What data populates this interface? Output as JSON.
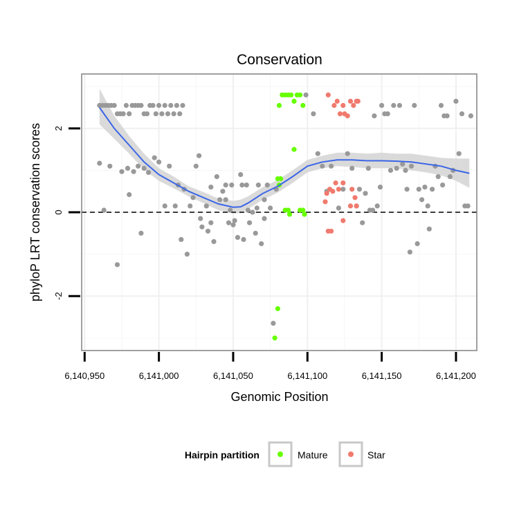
{
  "chart_data": {
    "type": "scatter",
    "title": "Conservation",
    "xlabel": "Genomic Position",
    "ylabel": "phyloP LRT conservation scores",
    "xlim": [
      6140948,
      6141214
    ],
    "ylim": [
      -3.3,
      3.3
    ],
    "x_ticks": [
      6140950,
      6141000,
      6141050,
      6141100,
      6141150,
      6141200
    ],
    "x_tick_labels": [
      "6,140,950",
      "6,141,000",
      "6,141,050",
      "6,141,100",
      "6,141,150",
      "6,141,200"
    ],
    "y_ticks": [
      -2,
      0,
      2
    ],
    "y_tick_labels": [
      "-2",
      "0",
      "2"
    ],
    "reference_line": {
      "y": 0,
      "style": "dashed"
    },
    "legend": {
      "title": "Hairpin partition",
      "placement": "bottom",
      "entries": [
        {
          "label": "Mature",
          "color": "#66ff00"
        },
        {
          "label": "Star",
          "color": "#f07a6e"
        }
      ]
    },
    "colors": {
      "other": "#999999",
      "mature": "#66ff00",
      "star": "#f07a6e",
      "smooth": "#3b66e6",
      "band": "#d4d4d4"
    },
    "series": [
      {
        "name": "Other",
        "points": [
          [
            6140960,
            2.55
          ],
          [
            6140962,
            2.55
          ],
          [
            6140964,
            2.55
          ],
          [
            6140966,
            2.55
          ],
          [
            6140968,
            2.55
          ],
          [
            6140970,
            2.55
          ],
          [
            6140972,
            2.35
          ],
          [
            6140974,
            2.35
          ],
          [
            6140976,
            2.35
          ],
          [
            6140978,
            2.55
          ],
          [
            6140980,
            2.35
          ],
          [
            6140982,
            2.55
          ],
          [
            6140984,
            2.55
          ],
          [
            6140986,
            2.55
          ],
          [
            6140988,
            2.55
          ],
          [
            6140990,
            2.35
          ],
          [
            6140992,
            2.35
          ],
          [
            6140994,
            2.55
          ],
          [
            6140996,
            2.55
          ],
          [
            6140998,
            2.35
          ],
          [
            6141000,
            2.55
          ],
          [
            6141002,
            2.35
          ],
          [
            6141004,
            2.55
          ],
          [
            6141006,
            2.35
          ],
          [
            6141008,
            2.55
          ],
          [
            6141010,
            2.35
          ],
          [
            6141012,
            2.55
          ],
          [
            6141014,
            2.35
          ],
          [
            6141016,
            2.55
          ],
          [
            6140960,
            1.17
          ],
          [
            6140963,
            0.05
          ],
          [
            6140967,
            1.1
          ],
          [
            6140972,
            -1.25
          ],
          [
            6140975,
            0.97
          ],
          [
            6140979,
            1.05
          ],
          [
            6140980,
            0.42
          ],
          [
            6140983,
            0.97
          ],
          [
            6140986,
            1.1
          ],
          [
            6140988,
            -0.5
          ],
          [
            6140990,
            1.05
          ],
          [
            6140993,
            0.95
          ],
          [
            6140997,
            1.3
          ],
          [
            6141000,
            1.2
          ],
          [
            6141004,
            0.15
          ],
          [
            6141007,
            1.1
          ],
          [
            6141011,
            0.15
          ],
          [
            6141013,
            0.65
          ],
          [
            6141015,
            -0.65
          ],
          [
            6141017,
            0.55
          ],
          [
            6141019,
            -1.0
          ],
          [
            6141021,
            0.15
          ],
          [
            6141023,
            0.35
          ],
          [
            6141025,
            1.1
          ],
          [
            6141027,
            1.35
          ],
          [
            6141028,
            -0.15
          ],
          [
            6141029,
            -0.35
          ],
          [
            6141032,
            0.15
          ],
          [
            6141033,
            -0.45
          ],
          [
            6141035,
            -0.25
          ],
          [
            6141037,
            -0.7
          ],
          [
            6141039,
            0.85
          ],
          [
            6141041,
            0.3
          ],
          [
            6141043,
            0.5
          ],
          [
            6141045,
            0.65
          ],
          [
            6141047,
            -0.25
          ],
          [
            6141049,
            0.65
          ],
          [
            6141051,
            -0.2
          ],
          [
            6141053,
            -0.6
          ],
          [
            6141055,
            0.9
          ],
          [
            6141057,
            -0.65
          ],
          [
            6141059,
            0.65
          ],
          [
            6141061,
            -0.25
          ],
          [
            6141063,
            0.0
          ],
          [
            6141065,
            -0.5
          ],
          [
            6141067,
            0.65
          ],
          [
            6141069,
            -0.75
          ],
          [
            6141071,
            0.3
          ],
          [
            6141073,
            0.65
          ],
          [
            6141075,
            0.1
          ],
          [
            6141077,
            -2.65
          ],
          [
            6141079,
            0.55
          ],
          [
            6141035,
            0.6
          ],
          [
            6141045,
            0.3
          ],
          [
            6141048,
            0.05
          ],
          [
            6141050,
            -0.3
          ],
          [
            6141056,
            0.65
          ],
          [
            6141060,
            0.05
          ],
          [
            6141066,
            0.1
          ],
          [
            6141071,
            -0.15
          ],
          [
            6141099,
            2.8
          ],
          [
            6141104,
            2.35
          ],
          [
            6141107,
            1.4
          ],
          [
            6141110,
            1.1
          ],
          [
            6141113,
            0.5
          ],
          [
            6141116,
            1.1
          ],
          [
            6141121,
            0.1
          ],
          [
            6141124,
            0.55
          ],
          [
            6141127,
            1.4
          ],
          [
            6141130,
            1.05
          ],
          [
            6141133,
            0.15
          ],
          [
            6141135,
            0.55
          ],
          [
            6141137,
            -0.25
          ],
          [
            6141139,
            0.45
          ],
          [
            6141141,
            1.05
          ],
          [
            6141142,
            0.05
          ],
          [
            6141144,
            0.05
          ],
          [
            6141145,
            2.3
          ],
          [
            6141147,
            0.15
          ],
          [
            6141149,
            0.6
          ],
          [
            6141150,
            2.55
          ],
          [
            6141152,
            2.35
          ],
          [
            6141154,
            2.35
          ],
          [
            6141156,
            1.0
          ],
          [
            6141158,
            2.55
          ],
          [
            6141160,
            1.05
          ],
          [
            6141162,
            2.55
          ],
          [
            6141164,
            1.15
          ],
          [
            6141166,
            1.0
          ],
          [
            6141167,
            0.55
          ],
          [
            6141169,
            -0.95
          ],
          [
            6141170,
            1.1
          ],
          [
            6141172,
            2.55
          ],
          [
            6141174,
            -0.75
          ],
          [
            6141175,
            0.55
          ],
          [
            6141177,
            0.3
          ],
          [
            6141179,
            0.6
          ],
          [
            6141181,
            0.15
          ],
          [
            6141182,
            -0.4
          ],
          [
            6141184,
            0.55
          ],
          [
            6141186,
            1.1
          ],
          [
            6141188,
            0.85
          ],
          [
            6141190,
            2.55
          ],
          [
            6141191,
            0.65
          ],
          [
            6141192,
            2.3
          ],
          [
            6141194,
            2.3
          ],
          [
            6141196,
            0.85
          ],
          [
            6141198,
            1.0
          ],
          [
            6141200,
            2.65
          ],
          [
            6141202,
            1.4
          ],
          [
            6141204,
            2.35
          ],
          [
            6141206,
            0.15
          ],
          [
            6141208,
            0.15
          ],
          [
            6141210,
            2.3
          ]
        ]
      },
      {
        "name": "Mature",
        "points": [
          [
            6141081,
            2.55
          ],
          [
            6141083,
            2.8
          ],
          [
            6141085,
            2.8
          ],
          [
            6141087,
            2.8
          ],
          [
            6141089,
            2.8
          ],
          [
            6141091,
            2.65
          ],
          [
            6141093,
            2.8
          ],
          [
            6141095,
            2.8
          ],
          [
            6141097,
            2.55
          ],
          [
            6141091,
            1.5
          ],
          [
            6141080,
            0.8
          ],
          [
            6141082,
            0.8
          ],
          [
            6141081,
            0.65
          ],
          [
            6141085,
            0.05
          ],
          [
            6141087,
            0.05
          ],
          [
            6141088,
            -0.05
          ],
          [
            6141095,
            0.05
          ],
          [
            6141097,
            0.05
          ],
          [
            6141098,
            -0.05
          ],
          [
            6141080,
            -2.3
          ],
          [
            6141078,
            -3.0
          ]
        ]
      },
      {
        "name": "Star",
        "points": [
          [
            6141114,
            2.8
          ],
          [
            6141118,
            2.55
          ],
          [
            6141120,
            2.65
          ],
          [
            6141122,
            2.35
          ],
          [
            6141124,
            2.55
          ],
          [
            6141125,
            2.35
          ],
          [
            6141127,
            2.3
          ],
          [
            6141129,
            2.65
          ],
          [
            6141131,
            2.55
          ],
          [
            6141133,
            2.65
          ],
          [
            6141134,
            2.65
          ],
          [
            6141113,
            0.45
          ],
          [
            6141115,
            0.55
          ],
          [
            6141117,
            0.5
          ],
          [
            6141119,
            0.7
          ],
          [
            6141121,
            0.55
          ],
          [
            6141124,
            0.7
          ],
          [
            6141130,
            0.55
          ],
          [
            6141132,
            0.35
          ],
          [
            6141112,
            0.25
          ],
          [
            6141114,
            -0.45
          ],
          [
            6141116,
            -0.45
          ],
          [
            6141124,
            -0.2
          ],
          [
            6141129,
            0.15
          ],
          [
            6141133,
            0.15
          ]
        ]
      }
    ],
    "smooth_fit": [
      [
        6140960,
        2.5,
        2.1,
        2.95
      ],
      [
        6140970,
        2.0,
        1.75,
        2.3
      ],
      [
        6140980,
        1.6,
        1.4,
        1.82
      ],
      [
        6140990,
        1.2,
        1.02,
        1.4
      ],
      [
        6141000,
        0.9,
        0.75,
        1.05
      ],
      [
        6141010,
        0.7,
        0.57,
        0.85
      ],
      [
        6141020,
        0.5,
        0.38,
        0.62
      ],
      [
        6141030,
        0.35,
        0.22,
        0.48
      ],
      [
        6141040,
        0.2,
        0.05,
        0.33
      ],
      [
        6141050,
        0.12,
        -0.03,
        0.27
      ],
      [
        6141055,
        0.13,
        -0.02,
        0.3
      ],
      [
        6141060,
        0.22,
        0.08,
        0.38
      ],
      [
        6141070,
        0.45,
        0.3,
        0.6
      ],
      [
        6141080,
        0.62,
        0.47,
        0.77
      ],
      [
        6141090,
        0.85,
        0.7,
        1.0
      ],
      [
        6141100,
        1.1,
        0.95,
        1.25
      ],
      [
        6141110,
        1.2,
        1.05,
        1.35
      ],
      [
        6141120,
        1.25,
        1.1,
        1.42
      ],
      [
        6141130,
        1.25,
        1.08,
        1.42
      ],
      [
        6141140,
        1.23,
        1.05,
        1.4
      ],
      [
        6141150,
        1.23,
        1.05,
        1.42
      ],
      [
        6141160,
        1.22,
        1.05,
        1.4
      ],
      [
        6141170,
        1.2,
        1.0,
        1.4
      ],
      [
        6141180,
        1.15,
        0.95,
        1.35
      ],
      [
        6141190,
        1.1,
        0.88,
        1.3
      ],
      [
        6141200,
        1.0,
        0.75,
        1.28
      ],
      [
        6141209,
        0.93,
        0.58,
        1.28
      ]
    ]
  }
}
